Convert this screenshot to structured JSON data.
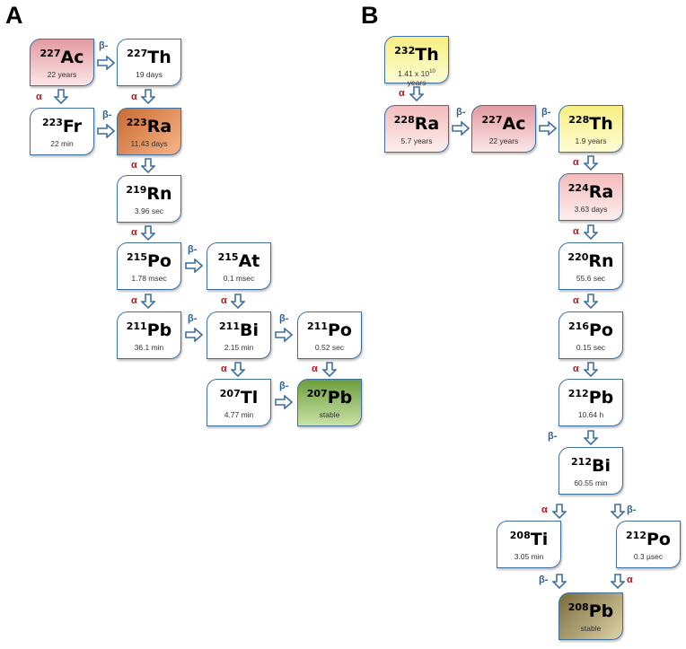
{
  "panels": {
    "a": "A",
    "b": "B"
  },
  "decay": {
    "alpha": "α",
    "beta": "β-"
  },
  "nodes": {
    "a_ac227": {
      "mass": "227",
      "sym": "Ac",
      "hl": "22 years"
    },
    "a_th227": {
      "mass": "227",
      "sym": "Th",
      "hl": "19 days"
    },
    "a_fr223": {
      "mass": "223",
      "sym": "Fr",
      "hl": "22 min"
    },
    "a_ra223": {
      "mass": "223",
      "sym": "Ra",
      "hl": "11.43 days"
    },
    "a_rn219": {
      "mass": "219",
      "sym": "Rn",
      "hl": "3.96 sec"
    },
    "a_po215": {
      "mass": "215",
      "sym": "Po",
      "hl": "1.78 msec"
    },
    "a_at215": {
      "mass": "215",
      "sym": "At",
      "hl": "0.1 msec"
    },
    "a_pb211": {
      "mass": "211",
      "sym": "Pb",
      "hl": "36.1 min"
    },
    "a_bi211": {
      "mass": "211",
      "sym": "Bi",
      "hl": "2.15 min"
    },
    "a_po211": {
      "mass": "211",
      "sym": "Po",
      "hl": "0.52 sec"
    },
    "a_tl207": {
      "mass": "207",
      "sym": "Tl",
      "hl": "4.77 min"
    },
    "a_pb207": {
      "mass": "207",
      "sym": "Pb",
      "hl": "stable"
    },
    "b_th232": {
      "mass": "232",
      "sym": "Th",
      "hl_base": "1.41 x 10",
      "hl_exp": "10",
      "hl_unit": "years"
    },
    "b_ra228": {
      "mass": "228",
      "sym": "Ra",
      "hl": "5.7 years"
    },
    "b_ac227": {
      "mass": "227",
      "sym": "Ac",
      "hl": "22 years"
    },
    "b_th228": {
      "mass": "228",
      "sym": "Th",
      "hl": "1.9 years"
    },
    "b_ra224": {
      "mass": "224",
      "sym": "Ra",
      "hl": "3.63 days"
    },
    "b_rn220": {
      "mass": "220",
      "sym": "Rn",
      "hl": "55.6 sec"
    },
    "b_po216": {
      "mass": "216",
      "sym": "Po",
      "hl": "0.15 sec"
    },
    "b_pb212": {
      "mass": "212",
      "sym": "Pb",
      "hl": "10.64 h"
    },
    "b_bi212": {
      "mass": "212",
      "sym": "Bi",
      "hl": "60.55 min"
    },
    "b_ti208": {
      "mass": "208",
      "sym": "Ti",
      "hl": "3.05 min"
    },
    "b_po212": {
      "mass": "212",
      "sym": "Po",
      "hl": "0.3 µsec"
    },
    "b_pb208": {
      "mass": "208",
      "sym": "Pb",
      "hl": "stable"
    }
  },
  "colors": {
    "border": "#3f6f9f",
    "alpha": "#c0141c",
    "beta": "#2f5f8f"
  }
}
